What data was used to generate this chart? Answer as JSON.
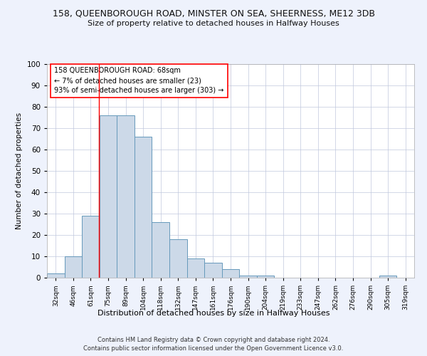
{
  "title": "158, QUEENBOROUGH ROAD, MINSTER ON SEA, SHEERNESS, ME12 3DB",
  "subtitle": "Size of property relative to detached houses in Halfway Houses",
  "xlabel": "Distribution of detached houses by size in Halfway Houses",
  "ylabel": "Number of detached properties",
  "bar_color": "#ccd9e8",
  "bar_edge_color": "#6699bb",
  "categories": [
    "32sqm",
    "46sqm",
    "61sqm",
    "75sqm",
    "89sqm",
    "104sqm",
    "118sqm",
    "132sqm",
    "147sqm",
    "161sqm",
    "176sqm",
    "190sqm",
    "204sqm",
    "219sqm",
    "233sqm",
    "247sqm",
    "262sqm",
    "276sqm",
    "290sqm",
    "305sqm",
    "319sqm"
  ],
  "values": [
    2,
    10,
    29,
    76,
    76,
    66,
    26,
    18,
    9,
    7,
    4,
    1,
    1,
    0,
    0,
    0,
    0,
    0,
    0,
    1,
    0
  ],
  "ylim": [
    0,
    100
  ],
  "yticks": [
    0,
    10,
    20,
    30,
    40,
    50,
    60,
    70,
    80,
    90,
    100
  ],
  "annotation_text_line1": "158 QUEENBOROUGH ROAD: 68sqm",
  "annotation_text_line2": "← 7% of detached houses are smaller (23)",
  "annotation_text_line3": "93% of semi-detached houses are larger (303) →",
  "red_line_x": 2.47,
  "footer1": "Contains HM Land Registry data © Crown copyright and database right 2024.",
  "footer2": "Contains public sector information licensed under the Open Government Licence v3.0.",
  "bg_color": "#eef2fc",
  "plot_bg_color": "#ffffff",
  "grid_color": "#c0c8dd"
}
